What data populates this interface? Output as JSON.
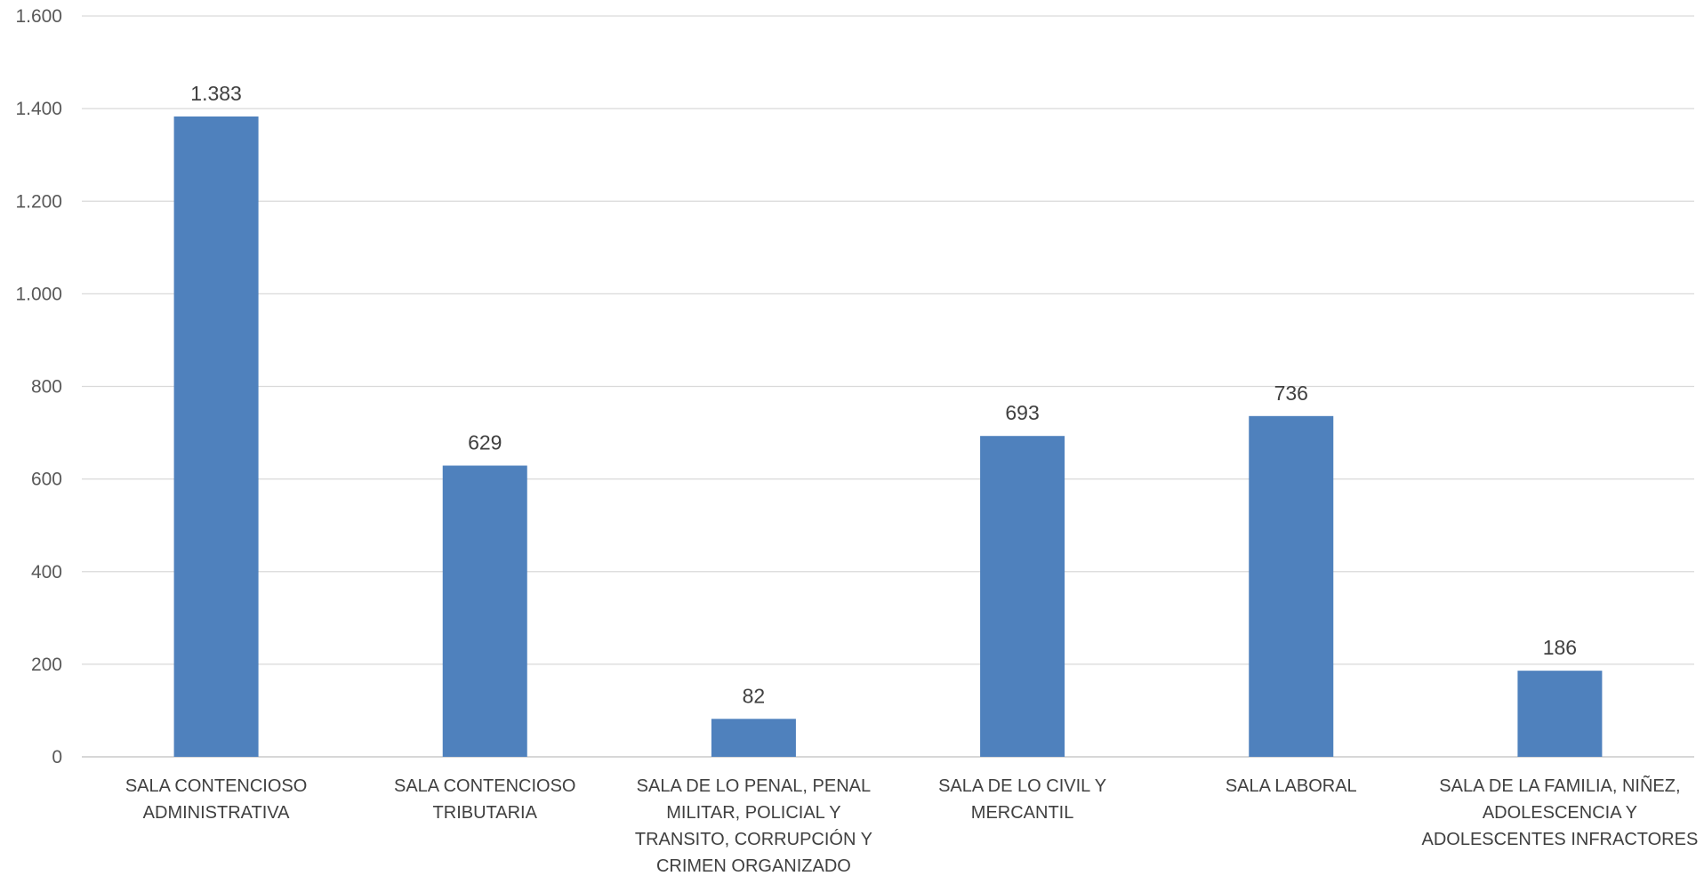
{
  "chart_data": {
    "type": "bar",
    "categories": [
      [
        "SALA CONTENCIOSO",
        "ADMINISTRATIVA"
      ],
      [
        "SALA CONTENCIOSO",
        "TRIBUTARIA"
      ],
      [
        "SALA DE LO PENAL, PENAL",
        "MILITAR, POLICIAL Y",
        "TRANSITO, CORRUPCIÓN Y",
        "CRIMEN ORGANIZADO"
      ],
      [
        "SALA DE LO CIVIL Y",
        "MERCANTIL"
      ],
      [
        "SALA LABORAL"
      ],
      [
        "SALA DE LA FAMILIA, NIÑEZ,",
        "ADOLESCENCIA Y",
        "ADOLESCENTES INFRACTORES"
      ]
    ],
    "values": [
      1383,
      629,
      82,
      693,
      736,
      186
    ],
    "value_labels": [
      "1.383",
      "629",
      "82",
      "693",
      "736",
      "186"
    ],
    "ylim": [
      0,
      1600
    ],
    "yticks": [
      0,
      200,
      400,
      600,
      800,
      1000,
      1200,
      1400,
      1600
    ],
    "ytick_labels": [
      "0",
      "200",
      "400",
      "600",
      "800",
      "1.000",
      "1.200",
      "1.400",
      "1.600"
    ],
    "grid": true,
    "legend": "none",
    "bar_color": "#4f81bd"
  }
}
